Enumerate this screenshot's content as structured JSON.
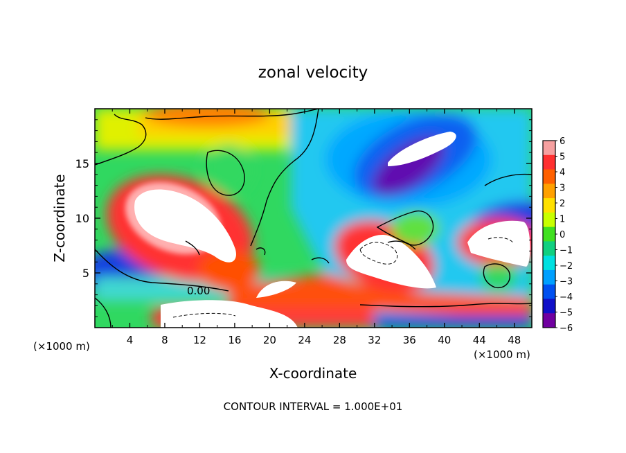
{
  "chart_data": {
    "type": "heatmap",
    "title": "zonal velocity",
    "xlabel": "X-coordinate",
    "ylabel": "Z-coordinate",
    "x_units": "(×1000 m)",
    "x_units_right": "(×1000 m)",
    "footer": "CONTOUR INTERVAL = 1.000E+01",
    "xlim": [
      0,
      50
    ],
    "ylim": [
      0,
      20
    ],
    "x_ticks": [
      4,
      8,
      12,
      16,
      20,
      24,
      28,
      32,
      36,
      40,
      44,
      48
    ],
    "y_ticks": [
      5,
      10,
      15
    ],
    "colorbar_ticks": [
      6,
      5,
      4,
      3,
      2,
      1,
      0,
      -1,
      -2,
      -3,
      -4,
      -5,
      -6
    ],
    "colorbar_colors": [
      "#f6a0a0",
      "#ff3030",
      "#ff6000",
      "#ffa000",
      "#ffe000",
      "#c8ff00",
      "#40e020",
      "#10d080",
      "#00e0e0",
      "#00a0ff",
      "#0050f0",
      "#1010c8",
      "#7000a0"
    ],
    "contour_zero_label": "0.00",
    "features": [
      {
        "type": "positive_max_saturated",
        "x": 11,
        "z": 10,
        "value": 6
      },
      {
        "type": "negative_min",
        "x": 36,
        "z": 16,
        "value": -6
      },
      {
        "type": "positive_max_saturated",
        "x": 32,
        "z": 6,
        "value": 6
      },
      {
        "type": "positive_max_saturated",
        "x": 47,
        "z": 8,
        "value": 6
      },
      {
        "type": "positive_max_saturated",
        "x": 16,
        "z": 1.5,
        "value": 6
      }
    ]
  }
}
